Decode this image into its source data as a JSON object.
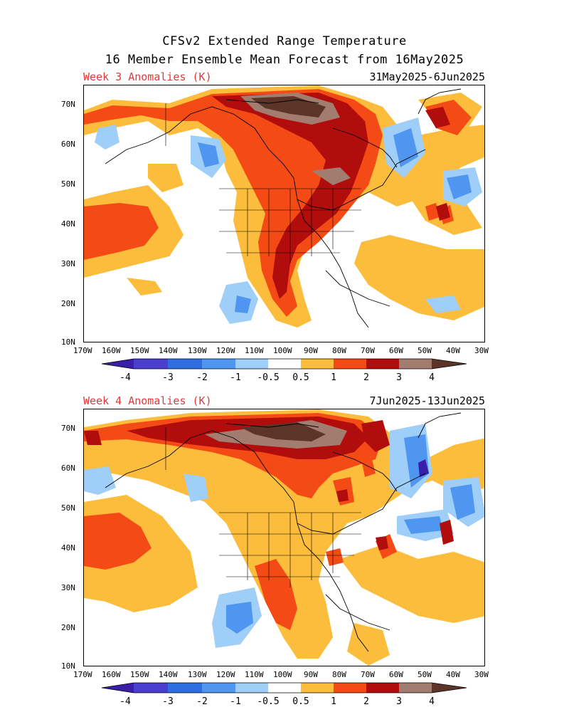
{
  "header": {
    "title_line1": "CFSv2 Extended Range Temperature",
    "title_line2": "16 Member Ensemble Mean Forecast from 16May2025"
  },
  "panels": [
    {
      "label": "Week 3 Anomalies (K)",
      "dates": "31May2025-6Jun2025"
    },
    {
      "label": "Week 4 Anomalies (K)",
      "dates": "7Jun2025-13Jun2025"
    }
  ],
  "axes": {
    "lat_labels": [
      "70N",
      "60N",
      "50N",
      "40N",
      "30N",
      "20N",
      "10N"
    ],
    "lon_labels": [
      "170W",
      "160W",
      "150W",
      "140W",
      "130W",
      "120W",
      "110W",
      "100W",
      "90W",
      "80W",
      "70W",
      "60W",
      "50W",
      "40W",
      "30W"
    ]
  },
  "colorbar": {
    "labels": [
      "-4",
      "-3",
      "-2",
      "-1",
      "-0.5",
      "0.5",
      "1",
      "2",
      "3",
      "4"
    ],
    "colors": [
      "#3a1fa8",
      "#4a3fcf",
      "#2f6ee0",
      "#4f96f0",
      "#9fcef8",
      "#ffffff",
      "#fbbd3b",
      "#f44b16",
      "#b20d0d",
      "#a37c70",
      "#5c3528"
    ]
  }
}
